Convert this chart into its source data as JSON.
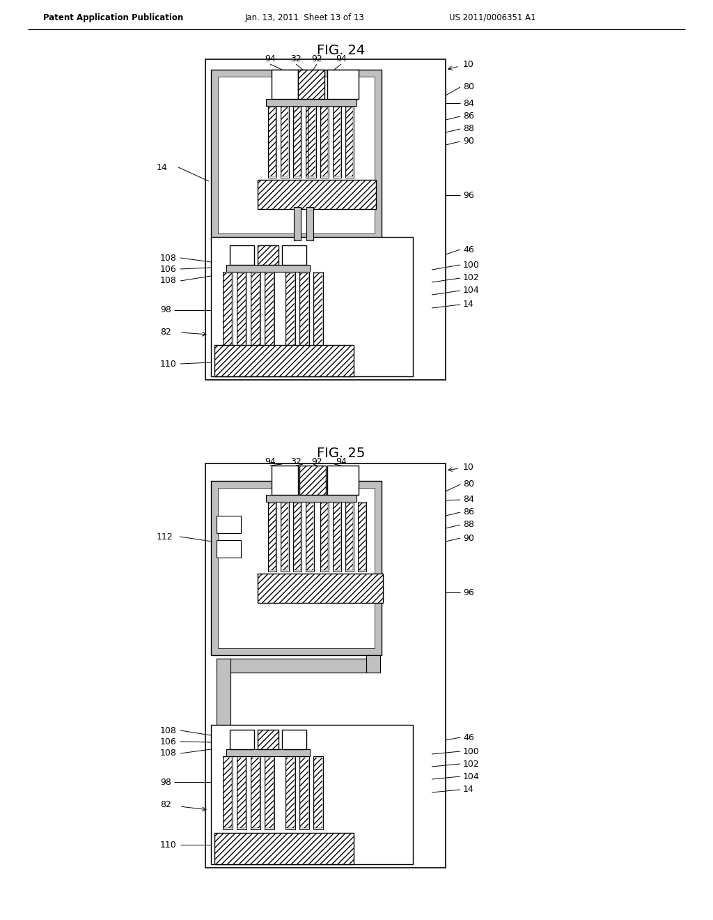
{
  "background_color": "#ffffff",
  "header_text": "Patent Application Publication",
  "header_date": "Jan. 13, 2011  Sheet 13 of 13",
  "header_patent": "US 2011/0006351 A1",
  "fig24_title": "FIG. 24",
  "fig25_title": "FIG. 25",
  "fig_title_fontsize": 14,
  "label_fontsize": 9,
  "header_fontsize": 8.5,
  "gray_fill": "#c0c0c0",
  "hatch_color": "#000000",
  "light_gray": "#d8d8d8"
}
